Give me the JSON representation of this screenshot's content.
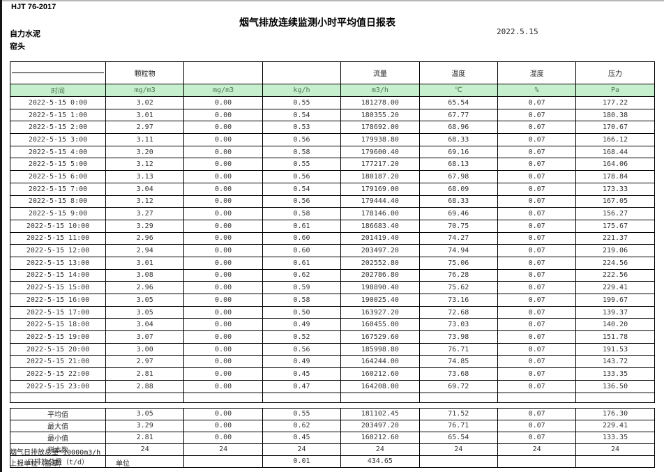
{
  "page": {
    "standard_code": "HJT  76-2017",
    "title": "烟气排放连续监测小时平均值日报表",
    "date": "2022.5.15",
    "company": "自力水泥",
    "station": "窑头"
  },
  "colors": {
    "header_bg": "#c6efce",
    "header_text": "#4f7a4f"
  },
  "table": {
    "header_groups": [
      "",
      "颗粒物",
      "",
      "",
      "流量",
      "温度",
      "湿度",
      "压力"
    ],
    "unit_row": [
      "时间",
      "mg/m3",
      "mg/m3",
      "kg/h",
      "m3/h",
      "℃",
      "%",
      "Pa"
    ],
    "rows": [
      [
        "2022-5-15 0:00",
        "3.02",
        "0.00",
        "0.55",
        "181278.00",
        "65.54",
        "0.07",
        "177.22"
      ],
      [
        "2022-5-15 1:00",
        "3.01",
        "0.00",
        "0.54",
        "180355.20",
        "67.77",
        "0.07",
        "180.38"
      ],
      [
        "2022-5-15 2:00",
        "2.97",
        "0.00",
        "0.53",
        "178692.00",
        "68.96",
        "0.07",
        "170.67"
      ],
      [
        "2022-5-15 3:00",
        "3.11",
        "0.00",
        "0.56",
        "179938.80",
        "68.33",
        "0.07",
        "166.12"
      ],
      [
        "2022-5-15 4:00",
        "3.20",
        "0.00",
        "0.58",
        "179600.40",
        "69.16",
        "0.07",
        "168.44"
      ],
      [
        "2022-5-15 5:00",
        "3.12",
        "0.00",
        "0.55",
        "177217.20",
        "68.13",
        "0.07",
        "164.06"
      ],
      [
        "2022-5-15 6:00",
        "3.13",
        "0.00",
        "0.56",
        "180187.20",
        "67.98",
        "0.07",
        "178.84"
      ],
      [
        "2022-5-15 7:00",
        "3.04",
        "0.00",
        "0.54",
        "179169.00",
        "68.09",
        "0.07",
        "173.33"
      ],
      [
        "2022-5-15 8:00",
        "3.12",
        "0.00",
        "0.56",
        "179444.40",
        "68.33",
        "0.07",
        "167.05"
      ],
      [
        "2022-5-15 9:00",
        "3.27",
        "0.00",
        "0.58",
        "178146.00",
        "69.46",
        "0.07",
        "156.27"
      ],
      [
        "2022-5-15 10:00",
        "3.29",
        "0.00",
        "0.61",
        "186683.40",
        "70.75",
        "0.07",
        "175.67"
      ],
      [
        "2022-5-15 11:00",
        "2.96",
        "0.00",
        "0.60",
        "201419.40",
        "74.27",
        "0.07",
        "221.37"
      ],
      [
        "2022-5-15 12:00",
        "2.94",
        "0.00",
        "0.60",
        "203497.20",
        "74.94",
        "0.07",
        "219.06"
      ],
      [
        "2022-5-15 13:00",
        "3.01",
        "0.00",
        "0.61",
        "202552.80",
        "75.06",
        "0.07",
        "224.56"
      ],
      [
        "2022-5-15 14:00",
        "3.08",
        "0.00",
        "0.62",
        "202786.80",
        "76.28",
        "0.07",
        "222.56"
      ],
      [
        "2022-5-15 15:00",
        "2.96",
        "0.00",
        "0.59",
        "198890.40",
        "75.62",
        "0.07",
        "229.41"
      ],
      [
        "2022-5-15 16:00",
        "3.05",
        "0.00",
        "0.58",
        "190025.40",
        "73.16",
        "0.07",
        "199.67"
      ],
      [
        "2022-5-15 17:00",
        "3.05",
        "0.00",
        "0.50",
        "163927.20",
        "72.68",
        "0.07",
        "139.37"
      ],
      [
        "2022-5-15 18:00",
        "3.04",
        "0.00",
        "0.49",
        "160455.00",
        "73.03",
        "0.07",
        "140.20"
      ],
      [
        "2022-5-15 19:00",
        "3.07",
        "0.00",
        "0.52",
        "167529.60",
        "73.98",
        "0.07",
        "151.78"
      ],
      [
        "2022-5-15 20:00",
        "3.00",
        "0.00",
        "0.56",
        "185998.80",
        "76.71",
        "0.07",
        "191.53"
      ],
      [
        "2022-5-15 21:00",
        "2.97",
        "0.00",
        "0.49",
        "164244.00",
        "74.85",
        "0.07",
        "143.72"
      ],
      [
        "2022-5-15 22:00",
        "2.81",
        "0.00",
        "0.45",
        "160212.60",
        "73.68",
        "0.07",
        "133.35"
      ],
      [
        "2022-5-15 23:00",
        "2.88",
        "0.00",
        "0.47",
        "164208.00",
        "69.72",
        "0.07",
        "136.50"
      ]
    ],
    "summary": [
      [
        "平均值",
        "3.05",
        "0.00",
        "0.55",
        "181102.45",
        "71.52",
        "0.07",
        "176.30"
      ],
      [
        "最大值",
        "3.29",
        "0.00",
        "0.62",
        "203497.20",
        "76.71",
        "0.07",
        "229.41"
      ],
      [
        "最小值",
        "2.81",
        "0.00",
        "0.45",
        "160212.60",
        "65.54",
        "0.07",
        "133.35"
      ],
      [
        "样本数",
        "24",
        "24",
        "24",
        "24",
        "24",
        "24",
        "24"
      ],
      [
        "日排放总量（t/d）",
        "",
        "",
        "0.01",
        "434.65",
        "",
        "",
        ""
      ]
    ]
  },
  "footer": {
    "note": "烟气日排放总量*10000m3/h",
    "report_unit_label": "上报单位（盖章）",
    "unit_label": "单位"
  }
}
